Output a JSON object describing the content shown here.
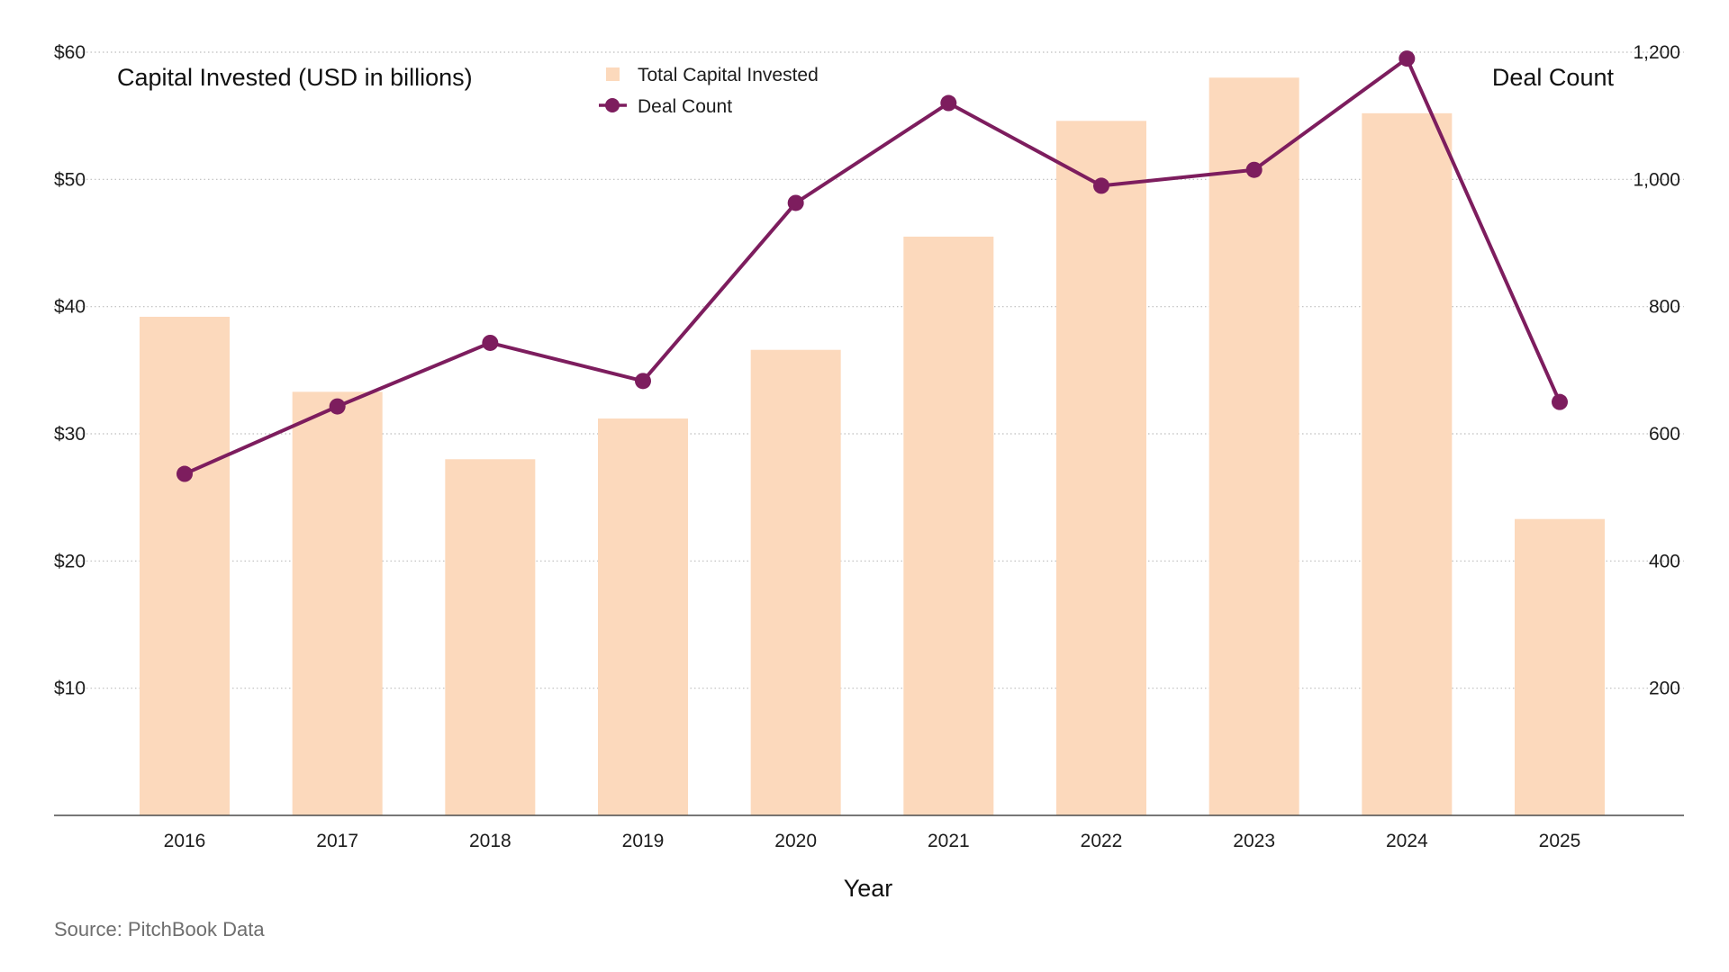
{
  "chart_data": {
    "type": "bar",
    "categories": [
      "2016",
      "2017",
      "2018",
      "2019",
      "2020",
      "2021",
      "2022",
      "2023",
      "2024",
      "2025"
    ],
    "series": [
      {
        "name": "Total Capital Invested",
        "type": "bar",
        "axis": "left",
        "values": [
          39.2,
          33.3,
          28.0,
          31.2,
          36.6,
          45.5,
          54.6,
          58.0,
          55.2,
          23.3
        ]
      },
      {
        "name": "Deal Count",
        "type": "line",
        "axis": "right",
        "values": [
          537,
          643,
          743,
          683,
          963,
          1120,
          990,
          1015,
          1190,
          650
        ]
      }
    ],
    "ylabel": "Capital Invested (USD in billions)",
    "y2label": "Deal Count",
    "xlabel": "Year",
    "ylim": [
      0,
      60
    ],
    "y2lim": [
      0,
      1200
    ],
    "yticks": [
      "$10",
      "$20",
      "$30",
      "$40",
      "$50",
      "$60"
    ],
    "y2ticks": [
      "200",
      "400",
      "600",
      "800",
      "1,000",
      "1,200"
    ],
    "grid": true,
    "legend": "top-center",
    "source": "Source: PitchBook Data",
    "colors": {
      "bar": "#fcd9bc",
      "line": "#7d1d5e",
      "grid": "#bdbdbd",
      "axis": "#4a4a4a"
    }
  }
}
